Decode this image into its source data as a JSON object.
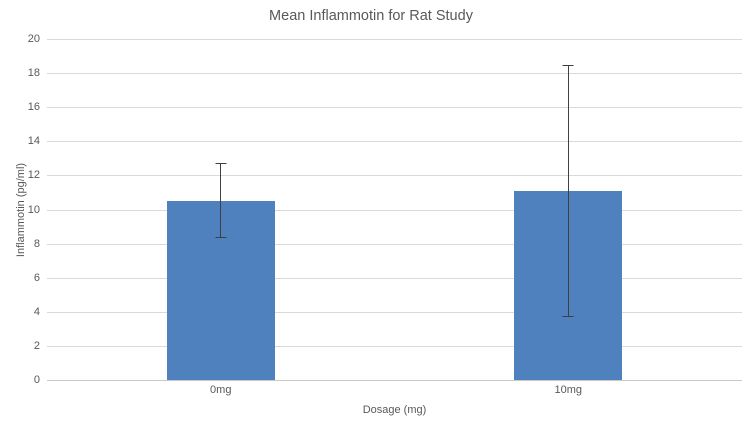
{
  "chart_data": {
    "type": "bar",
    "title": "Mean Inflammotin for Rat Study",
    "xlabel": "Dosage (mg)",
    "ylabel": "Inflammotin (pg/ml)",
    "categories": [
      "0mg",
      "10mg"
    ],
    "values": [
      10.5,
      11.1
    ],
    "error_bars": {
      "plus": [
        2.2,
        7.4
      ],
      "minus": [
        2.2,
        7.4
      ],
      "tops": [
        12.7,
        18.5
      ],
      "bottoms": [
        8.3,
        3.7
      ]
    },
    "ylim": [
      0,
      20
    ],
    "ytick_step": 2,
    "grid": true,
    "legend": "none",
    "colors": {
      "bar": "#4e81bd",
      "gridline": "#d9d9d9",
      "axis_line": "#c9c9c9",
      "error_bar": "#404040",
      "text": "#595959",
      "background": "#ffffff"
    }
  }
}
